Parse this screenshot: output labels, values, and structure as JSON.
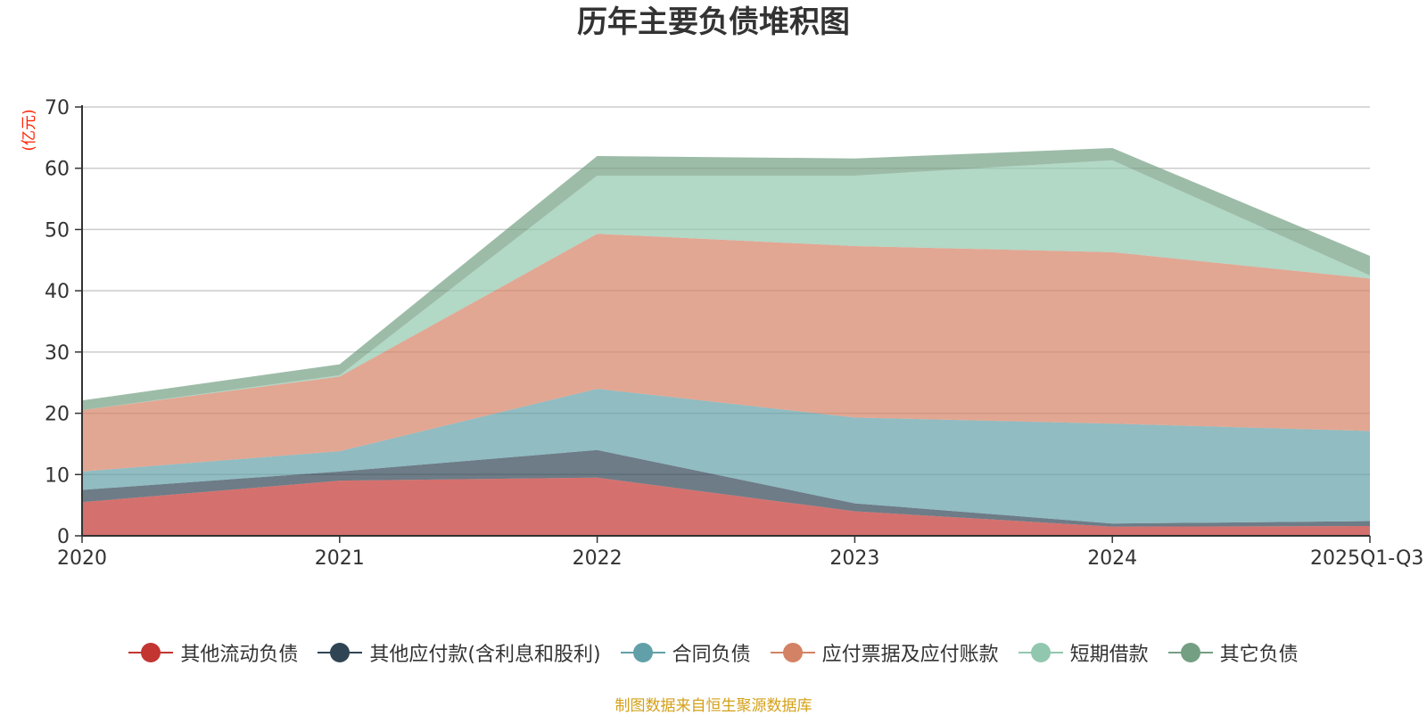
{
  "chart_data": {
    "type": "area",
    "stacked": true,
    "title": "历年主要负债堆积图",
    "ylabel": "(亿元)",
    "xlabel": "",
    "ylim": [
      0,
      70
    ],
    "yticks": [
      "0",
      "10",
      "20",
      "30",
      "40",
      "50",
      "60",
      "70"
    ],
    "categories": [
      "2020",
      "2021",
      "2022",
      "2023",
      "2024",
      "2025Q1-Q3"
    ],
    "series": [
      {
        "name": "其他流动负债",
        "color": "#c23531",
        "values": [
          5.5,
          9.0,
          9.5,
          4.0,
          1.5,
          1.6
        ]
      },
      {
        "name": "其他应付款(含利息和股利)",
        "color": "#2f4554",
        "values": [
          2.0,
          1.5,
          4.5,
          1.3,
          0.5,
          0.8
        ]
      },
      {
        "name": "合同负债",
        "color": "#61a0a8",
        "values": [
          3.0,
          3.3,
          10.0,
          14.0,
          16.3,
          14.7
        ]
      },
      {
        "name": "应付票据及应付账款",
        "color": "#d48265",
        "values": [
          10.0,
          12.2,
          25.3,
          28.0,
          28.0,
          24.9
        ]
      },
      {
        "name": "短期借款",
        "color": "#91c7ae",
        "values": [
          0.0,
          0.2,
          9.5,
          11.5,
          15.0,
          0.5
        ]
      },
      {
        "name": "其它负债",
        "color": "#749f83",
        "values": [
          1.6,
          1.8,
          3.2,
          2.8,
          2.0,
          3.2
        ]
      }
    ],
    "grid": true,
    "legend_position": "bottom"
  },
  "source_note": "制图数据来自恒生聚源数据库"
}
